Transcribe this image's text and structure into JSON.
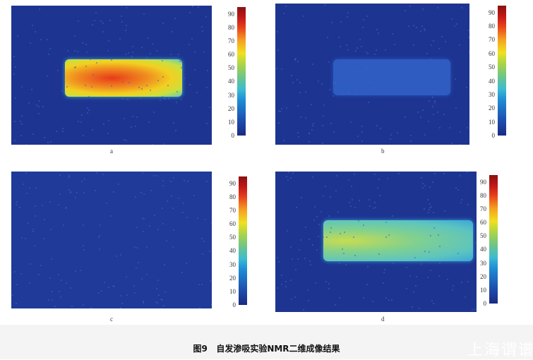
{
  "figure": {
    "panels": [
      {
        "label": "a",
        "signal": "high"
      },
      {
        "label": "b",
        "signal": "low"
      },
      {
        "label": "c",
        "signal": "none"
      },
      {
        "label": "d",
        "signal": "medium"
      }
    ],
    "colorbar": {
      "colormap": "jet",
      "min": 0,
      "max": 95,
      "ticks": [
        "0",
        "10",
        "20",
        "30",
        "40",
        "50",
        "60",
        "70",
        "80",
        "90"
      ]
    },
    "caption": "图9   自发渗吸实验NMR二维成像结果",
    "watermark": "上海谓谱"
  }
}
